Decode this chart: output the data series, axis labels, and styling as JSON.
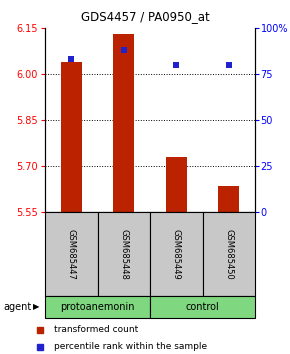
{
  "title": "GDS4457 / PA0950_at",
  "samples": [
    "GSM685447",
    "GSM685448",
    "GSM685449",
    "GSM685450"
  ],
  "red_values": [
    6.04,
    6.13,
    5.73,
    5.635
  ],
  "blue_percentiles": [
    83,
    88,
    80,
    80
  ],
  "y_min": 5.55,
  "y_max": 6.15,
  "y_ticks_left": [
    5.55,
    5.7,
    5.85,
    6.0,
    6.15
  ],
  "y_ticks_right": [
    0,
    25,
    50,
    75,
    100
  ],
  "grid_lines": [
    6.0,
    5.85,
    5.7
  ],
  "groups": [
    {
      "label": "protoanemonin",
      "cols": [
        0,
        1
      ]
    },
    {
      "label": "control",
      "cols": [
        2,
        3
      ]
    }
  ],
  "group_color": "#7FD87F",
  "bar_color": "#BB2200",
  "dot_color": "#2222CC",
  "baseline": 5.55,
  "agent_label": "agent",
  "legend_red": "transformed count",
  "legend_blue": "percentile rank within the sample",
  "sample_box_color": "#C8C8C8"
}
